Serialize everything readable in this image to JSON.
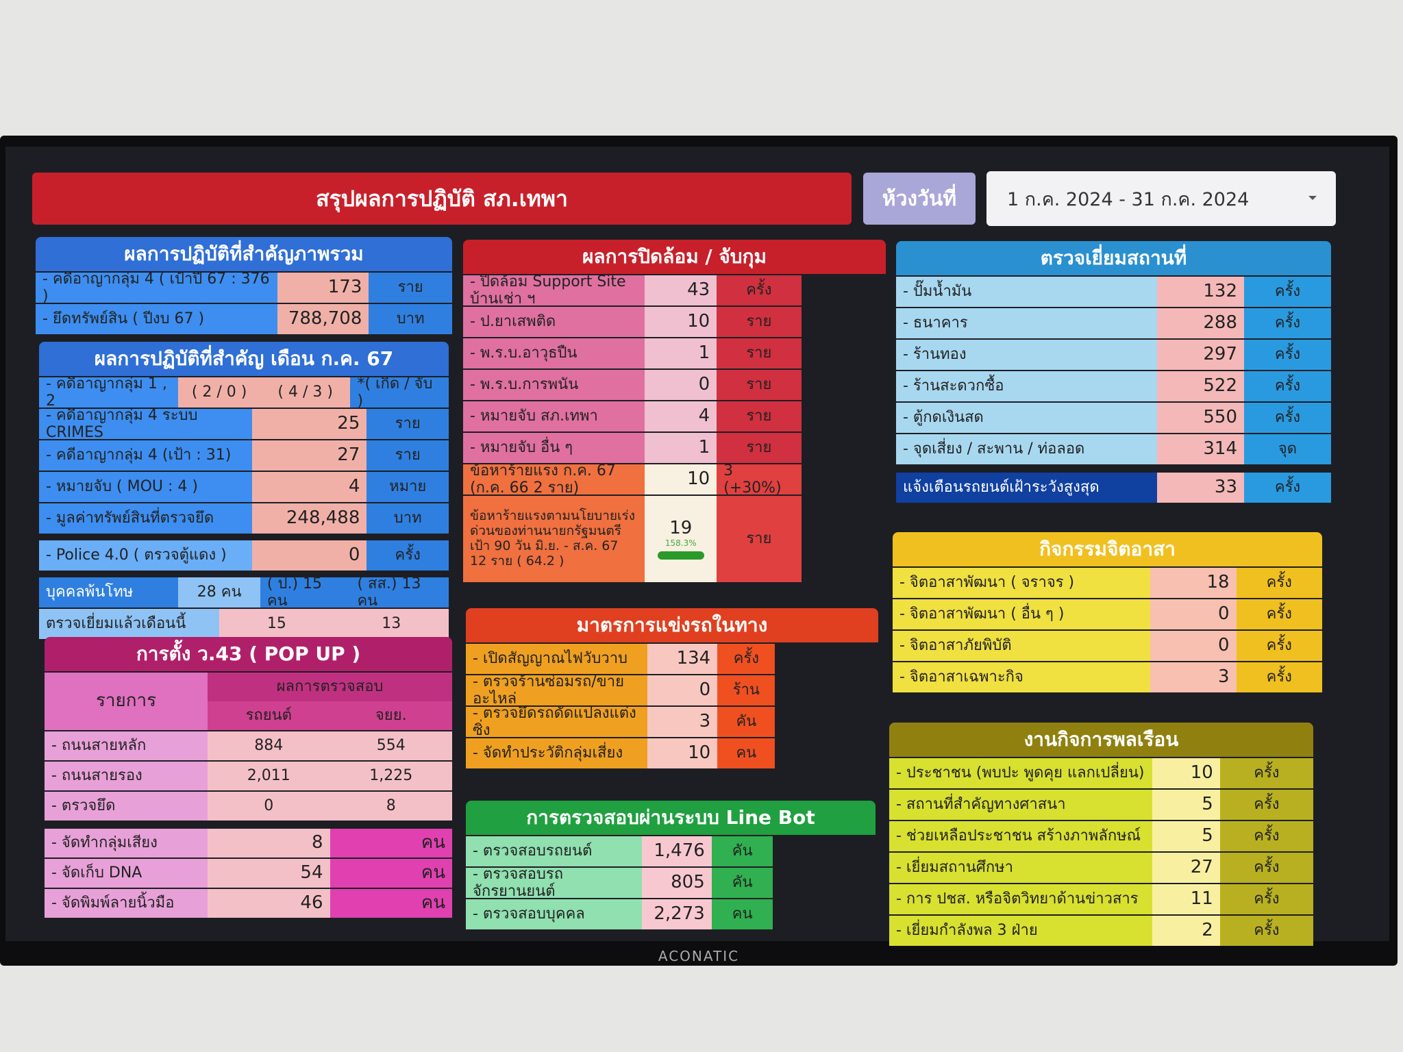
{
  "header": {
    "title": "สรุปผลการปฏิบัติ สภ.เทพา",
    "period_label": "ห้วงวันที่",
    "period": "1 ก.ค. 2024 - 31 ก.ค. 2024"
  },
  "panels": [
    {
      "title": "ผลการปฏิบัติที่สำคัญภาพรวม",
      "rows": [
        [
          "- คดีอาญากลุ่ม 4 ( เป้าปี 67 : 376 )",
          "173",
          "ราย"
        ],
        [
          "- ยึดทรัพย์สิน ( ปีงบ 67 )",
          "788,708",
          "บาท"
        ]
      ]
    },
    {
      "title": "ผลการปฏิบัติที่สำคัญ เดือน ก.ค. 67",
      "rows": [
        [
          "- คดีอาญากลุ่ม 1 , 2",
          "( 2 / 0 )",
          "( 4 / 3 )",
          "*( เกิด / จับ )"
        ],
        [
          "- คดีอาญากลุ่ม 4 ระบบ CRIMES",
          "25",
          "ราย"
        ],
        [
          "- คดีอาญากลุ่ม 4 (เป้า : 31)",
          "27",
          "ราย"
        ],
        [
          "- หมายจับ ( MOU : 4 )",
          "4",
          "หมาย"
        ],
        [
          "- มูลค่าทรัพย์สินที่ตรวจยึด",
          "248,488",
          "บาท"
        ],
        [
          "- Police 4.0 ( ตรวจตู้แดง )",
          "0",
          "ครั้ง"
        ],
        [
          "บุคคลพ้นโทษ",
          "28 คน",
          "( ป.) 15 คน",
          "( สส.) 13 คน"
        ],
        [
          "ตรวจเยี่ยมแล้วเดือนนี้",
          "15",
          "13"
        ]
      ]
    },
    {
      "title": "การตั้ง ว.43 ( POP UP )",
      "header": {
        "item": "รายการ",
        "results": "ผลการตรวจสอบ",
        "car": "รถยนต์",
        "moto": "จยย."
      },
      "rows": [
        [
          "- ถนนสายหลัก",
          "884",
          "554"
        ],
        [
          "- ถนนสายรอง",
          "2,011",
          "1,225"
        ],
        [
          "- ตรวจยึด",
          "0",
          "8"
        ],
        [
          "- จัดทำกลุ่มเสียง",
          "8",
          "คน"
        ],
        [
          "- จัดเก็บ DNA",
          "54",
          "คน"
        ],
        [
          "- จัดพิมพ์ลายนิ้วมือ",
          "46",
          "คน"
        ]
      ]
    },
    {
      "title": "ผลการปิดล้อม / จับกุม",
      "gauge": "158.3%",
      "rows": [
        [
          "- ปิดล้อม Support Site บ้านเช่า ฯ",
          "43",
          "ครั้ง"
        ],
        [
          "- ป.ยาเสพติด",
          "10",
          "ราย"
        ],
        [
          "- พ.ร.บ.อาวุธปืน",
          "1",
          "ราย"
        ],
        [
          "- พ.ร.บ.การพนัน",
          "0",
          "ราย"
        ],
        [
          "- หมายจับ สภ.เทพา",
          "4",
          "ราย"
        ],
        [
          "- หมายจับ อื่น ๆ",
          "1",
          "ราย"
        ],
        [
          "ข้อหาร้ายแรง ก.ค. 67 (ก.ค. 66 2 ราย)",
          "10",
          "3 (+30%)"
        ],
        [
          "ข้อหาร้ายแรงตามนโยบายเร่งด่วนของท่านนายกรัฐมนตรี เป้า 90 วัน มิ.ย. - ส.ค. 67 12 ราย ( 64.2 )",
          "19",
          "ราย"
        ]
      ]
    },
    {
      "title": "มาตรการแข่งรถในทาง",
      "rows": [
        [
          "- เปิดสัญญาณไฟวับวาบ",
          "134",
          "ครั้ง"
        ],
        [
          "- ตรวจร้านซ่อมรถ/ขายอะไหล่",
          "0",
          "ร้าน"
        ],
        [
          "- ตรวจยึดรถดัดแปลงแต่งซิ่ง",
          "3",
          "คัน"
        ],
        [
          "- จัดทำประวัติกลุ่มเสี่ยง",
          "10",
          "คน"
        ]
      ]
    },
    {
      "title": "การตรวจสอบผ่านระบบ Line Bot",
      "rows": [
        [
          "- ตรวจสอบรถยนต์",
          "1,476",
          "คัน"
        ],
        [
          "- ตรวจสอบรถจักรยานยนต์",
          "805",
          "คัน"
        ],
        [
          "- ตรวจสอบบุคคล",
          "2,273",
          "คน"
        ]
      ]
    },
    {
      "title": "ตรวจเยี่ยมสถานที่",
      "rows": [
        [
          "- ปั๊มน้ำมัน",
          "132",
          "ครั้ง"
        ],
        [
          "- ธนาคาร",
          "288",
          "ครั้ง"
        ],
        [
          "- ร้านทอง",
          "297",
          "ครั้ง"
        ],
        [
          "- ร้านสะดวกซื้อ",
          "522",
          "ครั้ง"
        ],
        [
          "- ตู้กดเงินสด",
          "550",
          "ครั้ง"
        ],
        [
          "- จุดเสี่ยง / สะพาน / ท่อลอด",
          "314",
          "จุด"
        ],
        [
          "แจ้งเตือนรถยนต์เฝ้าระวังสูงสุด",
          "33",
          "ครั้ง"
        ]
      ]
    },
    {
      "title": "กิจกรรมจิตอาสา",
      "rows": [
        [
          "- จิตอาสาพัฒนา ( จราจร )",
          "18",
          "ครั้ง"
        ],
        [
          "- จิตอาสาพัฒนา ( อื่น ๆ )",
          "0",
          "ครั้ง"
        ],
        [
          "- จิตอาสาภัยพิบัติ",
          "0",
          "ครั้ง"
        ],
        [
          "- จิตอาสาเฉพาะกิจ",
          "3",
          "ครั้ง"
        ]
      ]
    },
    {
      "title": "งานกิจการพลเรือน",
      "rows": [
        [
          "- ประชาชน (พบปะ พูดคุย แลกเปลี่ยน)",
          "10",
          "ครั้ง"
        ],
        [
          "- สถานที่สำคัญทางศาสนา",
          "5",
          "ครั้ง"
        ],
        [
          "- ช่วยเหลือประชาชน สร้างภาพลักษณ์",
          "5",
          "ครั้ง"
        ],
        [
          "- เยี่ยมสถานศึกษา",
          "27",
          "ครั้ง"
        ],
        [
          "- การ ปชส. หรือจิตวิทยาด้านข่าวสาร",
          "11",
          "ครั้ง"
        ],
        [
          "- เยี่ยมกำลังพล 3 ฝ่าย",
          "2",
          "ครั้ง"
        ]
      ]
    }
  ],
  "brand": "ACONATIC"
}
